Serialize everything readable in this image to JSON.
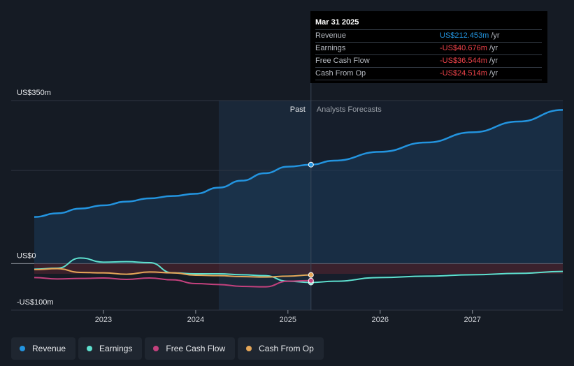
{
  "colors": {
    "revenue": "#2394df",
    "earnings": "#5ee0cf",
    "free_cash_flow": "#c3417d",
    "cash_from_op": "#e5a658",
    "negative": "#f0434a",
    "background": "#151b24"
  },
  "tooltip": {
    "date": "Mar 31 2025",
    "rows": [
      {
        "label": "Revenue",
        "value": "US$212.453m",
        "unit": "/yr",
        "color": "#2394df"
      },
      {
        "label": "Earnings",
        "value": "-US$40.676m",
        "unit": "/yr",
        "color": "#f0434a"
      },
      {
        "label": "Free Cash Flow",
        "value": "-US$36.544m",
        "unit": "/yr",
        "color": "#f0434a"
      },
      {
        "label": "Cash From Op",
        "value": "-US$24.514m",
        "unit": "/yr",
        "color": "#f0434a"
      }
    ]
  },
  "legend": [
    {
      "label": "Revenue",
      "color": "#2394df"
    },
    {
      "label": "Earnings",
      "color": "#5ee0cf"
    },
    {
      "label": "Free Cash Flow",
      "color": "#c3417d"
    },
    {
      "label": "Cash From Op",
      "color": "#e5a658"
    }
  ],
  "chart_data": {
    "type": "line",
    "y_axis_labels": [
      "US$350m",
      "US$0",
      "-US$100m"
    ],
    "x_tick_labels": [
      "2023",
      "2024",
      "2025",
      "2026",
      "2027"
    ],
    "ylim": [
      -100,
      350
    ],
    "xlim": [
      2022.0,
      2027.98
    ],
    "regions": {
      "past_label": "Past",
      "forecast_label": "Analysts Forecasts",
      "divider_x": 2025.25
    },
    "series": [
      {
        "name": "Revenue",
        "color": "#2394df",
        "points": [
          [
            2022.25,
            100
          ],
          [
            2022.5,
            108
          ],
          [
            2022.75,
            118
          ],
          [
            2023.0,
            125
          ],
          [
            2023.25,
            133
          ],
          [
            2023.5,
            140
          ],
          [
            2023.75,
            145
          ],
          [
            2024.0,
            150
          ],
          [
            2024.25,
            163
          ],
          [
            2024.5,
            178
          ],
          [
            2024.75,
            194
          ],
          [
            2025.0,
            208
          ],
          [
            2025.25,
            212.453
          ],
          [
            2025.5,
            221
          ],
          [
            2026.0,
            240
          ],
          [
            2026.5,
            260
          ],
          [
            2027.0,
            282
          ],
          [
            2027.5,
            305
          ],
          [
            2027.98,
            330
          ]
        ]
      },
      {
        "name": "Earnings",
        "color": "#5ee0cf",
        "points": [
          [
            2022.25,
            -12
          ],
          [
            2022.5,
            -10
          ],
          [
            2022.75,
            12
          ],
          [
            2023.0,
            3
          ],
          [
            2023.25,
            4
          ],
          [
            2023.5,
            2
          ],
          [
            2023.75,
            -20
          ],
          [
            2024.0,
            -22
          ],
          [
            2024.25,
            -22
          ],
          [
            2024.5,
            -24
          ],
          [
            2024.75,
            -26
          ],
          [
            2025.0,
            -38
          ],
          [
            2025.25,
            -40.676
          ],
          [
            2025.5,
            -38
          ],
          [
            2026.0,
            -30
          ],
          [
            2026.5,
            -27
          ],
          [
            2027.0,
            -24
          ],
          [
            2027.5,
            -21
          ],
          [
            2027.98,
            -17
          ]
        ]
      },
      {
        "name": "Free Cash Flow",
        "color": "#c3417d",
        "points": [
          [
            2022.25,
            -30
          ],
          [
            2022.5,
            -33
          ],
          [
            2022.75,
            -32
          ],
          [
            2023.0,
            -31
          ],
          [
            2023.25,
            -34
          ],
          [
            2023.5,
            -31
          ],
          [
            2023.75,
            -35
          ],
          [
            2024.0,
            -43
          ],
          [
            2024.25,
            -45
          ],
          [
            2024.5,
            -49
          ],
          [
            2024.75,
            -50
          ],
          [
            2025.0,
            -38
          ],
          [
            2025.25,
            -36.544
          ]
        ]
      },
      {
        "name": "Cash From Op",
        "color": "#e5a658",
        "points": [
          [
            2022.25,
            -13
          ],
          [
            2022.5,
            -11
          ],
          [
            2022.75,
            -19
          ],
          [
            2023.0,
            -20
          ],
          [
            2023.25,
            -23
          ],
          [
            2023.5,
            -18
          ],
          [
            2023.75,
            -20
          ],
          [
            2024.0,
            -25
          ],
          [
            2024.25,
            -26
          ],
          [
            2024.5,
            -28
          ],
          [
            2024.75,
            -29
          ],
          [
            2025.0,
            -27
          ],
          [
            2025.25,
            -24.514
          ]
        ]
      }
    ]
  }
}
